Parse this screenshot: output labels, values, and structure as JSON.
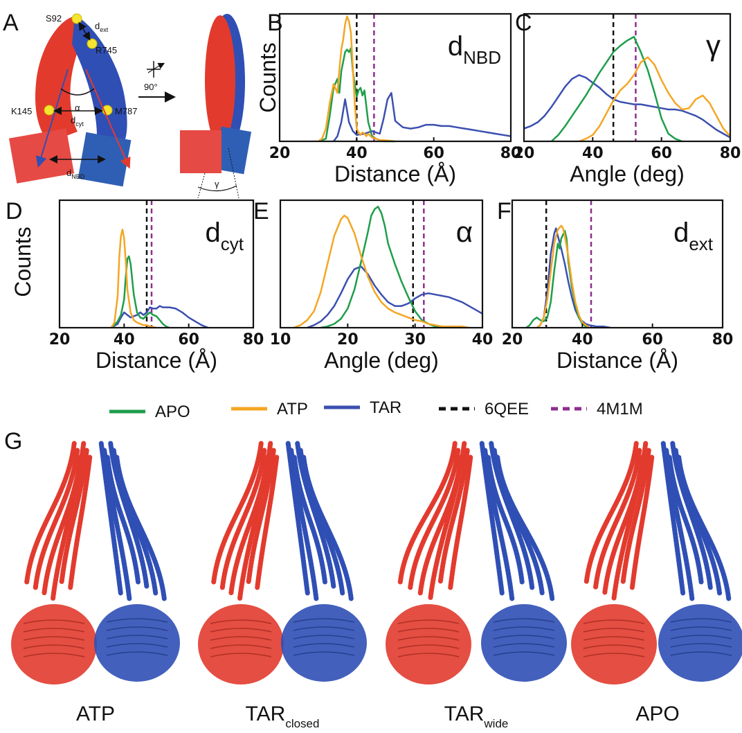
{
  "colors": {
    "APO": "#1e9e4a",
    "ATP": "#f4a623",
    "TAR": "#3b4fb0",
    "6QEE": "#111111",
    "4M1M": "#8e2d91",
    "chain_red": "#e23b2e",
    "chain_blue": "#2f4fb5"
  },
  "panel_A": {
    "letter": "A",
    "residues": [
      "S92",
      "R745",
      "K145",
      "M787"
    ],
    "d_ext_label": "d",
    "d_ext_sub": "ext",
    "alpha": "α",
    "d_cyt_label": "d",
    "d_cyt_sub": "cyt",
    "d_nbd_label": "d",
    "d_nbd_sub": "NBD",
    "rotation": "90°",
    "gamma": "γ"
  },
  "legend": {
    "items": [
      {
        "name": "APO",
        "style": "solid",
        "color": "#1e9e4a"
      },
      {
        "name": "ATP",
        "style": "solid",
        "color": "#f4a623"
      },
      {
        "name": "TAR",
        "style": "solid",
        "color": "#3b4fb0"
      },
      {
        "name": "6QEE",
        "style": "dashed",
        "color": "#111111"
      },
      {
        "name": "4M1M",
        "style": "dashed",
        "color": "#8e2d91"
      }
    ]
  },
  "chart_data": [
    {
      "panel": "B",
      "type": "line",
      "title_main": "d",
      "title_sub": "NBD",
      "xlabel": "Distance (Å)",
      "ylabel": "Counts",
      "xlim": [
        20,
        80
      ],
      "ylim": [
        0,
        1
      ],
      "xticks": [
        20,
        40,
        60,
        80
      ],
      "reference_lines": {
        "6QEE": 40,
        "4M1M": 44.5
      },
      "series": [
        {
          "name": "APO",
          "x": [
            30,
            32,
            33,
            34,
            35,
            35.5,
            36,
            37,
            37.5,
            38,
            38.5,
            39,
            40,
            40.5,
            41,
            41.5,
            42,
            43,
            44,
            45,
            46,
            47,
            50
          ],
          "y": [
            0,
            0.02,
            0.2,
            0.42,
            0.49,
            0.38,
            0.55,
            0.7,
            0.72,
            0.7,
            0.73,
            0.55,
            0.35,
            0.4,
            0.42,
            0.36,
            0.4,
            0.15,
            0.04,
            0.02,
            0.01,
            0,
            0
          ]
        },
        {
          "name": "ATP",
          "x": [
            30,
            31,
            32,
            33,
            34,
            35,
            35.5,
            36,
            36.5,
            37,
            37.5,
            38,
            38.5,
            39,
            39.5,
            40,
            40.5,
            41,
            41.5,
            42,
            42.5,
            43,
            44,
            45,
            46,
            47,
            50
          ],
          "y": [
            0,
            0.02,
            0.1,
            0.3,
            0.45,
            0.38,
            0.56,
            0.72,
            0.8,
            0.92,
            0.98,
            0.94,
            0.85,
            0.58,
            0.3,
            0.1,
            0.07,
            0.05,
            0.07,
            0.06,
            0.04,
            0.06,
            0.03,
            0.02,
            0.01,
            0.01,
            0
          ]
        },
        {
          "name": "TAR",
          "x": [
            34,
            35,
            36,
            37,
            38,
            39,
            40,
            42,
            44,
            46,
            47,
            48,
            49,
            50,
            52,
            54,
            56,
            58,
            60,
            62,
            64,
            66,
            68,
            70,
            72,
            74,
            76,
            78,
            80
          ],
          "y": [
            0,
            0.04,
            0.15,
            0.33,
            0.15,
            0.08,
            0.05,
            0.06,
            0.08,
            0.06,
            0.18,
            0.33,
            0.38,
            0.16,
            0.11,
            0.1,
            0.11,
            0.13,
            0.13,
            0.12,
            0.12,
            0.11,
            0.1,
            0.09,
            0.08,
            0.07,
            0.06,
            0.05,
            0.04
          ]
        }
      ]
    },
    {
      "panel": "C",
      "type": "line",
      "title_main": "γ",
      "title_sub": "",
      "xlabel": "Angle (deg)",
      "ylabel": "",
      "xlim": [
        20,
        80
      ],
      "ylim": [
        0,
        1
      ],
      "xticks": [
        20,
        40,
        60,
        80
      ],
      "reference_lines": {
        "6QEE": 46,
        "4M1M": 52.5
      },
      "series": [
        {
          "name": "APO",
          "x": [
            28,
            30,
            32,
            34,
            36,
            38,
            40,
            42,
            44,
            46,
            48,
            50,
            52,
            53,
            54,
            56,
            58,
            60,
            62,
            64,
            66
          ],
          "y": [
            0,
            0.05,
            0.12,
            0.2,
            0.28,
            0.36,
            0.45,
            0.54,
            0.62,
            0.7,
            0.75,
            0.79,
            0.82,
            0.76,
            0.7,
            0.56,
            0.38,
            0.18,
            0.06,
            0.02,
            0
          ]
        },
        {
          "name": "ATP",
          "x": [
            36,
            38,
            40,
            42,
            44,
            46,
            48,
            50,
            52,
            54,
            56,
            58,
            60,
            62,
            64,
            66,
            68,
            70,
            72,
            74,
            76,
            78,
            80
          ],
          "y": [
            0,
            0.02,
            0.05,
            0.12,
            0.22,
            0.32,
            0.4,
            0.45,
            0.52,
            0.62,
            0.66,
            0.6,
            0.48,
            0.38,
            0.3,
            0.25,
            0.26,
            0.33,
            0.36,
            0.3,
            0.2,
            0.1,
            0.04
          ]
        },
        {
          "name": "TAR",
          "x": [
            20,
            22,
            24,
            26,
            28,
            30,
            32,
            34,
            36,
            38,
            40,
            42,
            44,
            46,
            48,
            50,
            52,
            54,
            56,
            58,
            60,
            62,
            64,
            66,
            68,
            70,
            72,
            74,
            76,
            78,
            80
          ],
          "y": [
            0.1,
            0.12,
            0.15,
            0.2,
            0.27,
            0.35,
            0.43,
            0.49,
            0.52,
            0.5,
            0.46,
            0.42,
            0.37,
            0.33,
            0.31,
            0.3,
            0.29,
            0.29,
            0.28,
            0.27,
            0.26,
            0.25,
            0.25,
            0.24,
            0.22,
            0.2,
            0.17,
            0.13,
            0.09,
            0.06,
            0.03
          ]
        }
      ]
    },
    {
      "panel": "D",
      "type": "line",
      "title_main": "d",
      "title_sub": "cyt",
      "xlabel": "Distance (Å)",
      "ylabel": "Counts",
      "xlim": [
        20,
        80
      ],
      "ylim": [
        0,
        1
      ],
      "xticks": [
        20,
        40,
        60,
        80
      ],
      "reference_lines": {
        "6QEE": 47,
        "4M1M": 48.5
      },
      "series": [
        {
          "name": "APO",
          "x": [
            36,
            37,
            38,
            39,
            40,
            40.5,
            41,
            41.5,
            42,
            43,
            44,
            45,
            46,
            47,
            48,
            49,
            50,
            51,
            52,
            53,
            54
          ],
          "y": [
            0,
            0.02,
            0.05,
            0.1,
            0.22,
            0.4,
            0.54,
            0.56,
            0.5,
            0.26,
            0.12,
            0.08,
            0.07,
            0.1,
            0.12,
            0.1,
            0.09,
            0.06,
            0.03,
            0.01,
            0
          ]
        },
        {
          "name": "ATP",
          "x": [
            36,
            37,
            38,
            38.5,
            39,
            39.5,
            40,
            40.5,
            41,
            42,
            43,
            44,
            45,
            46,
            47,
            48,
            50
          ],
          "y": [
            0,
            0.04,
            0.25,
            0.55,
            0.72,
            0.77,
            0.7,
            0.52,
            0.3,
            0.12,
            0.06,
            0.04,
            0.03,
            0.02,
            0.02,
            0.01,
            0
          ]
        },
        {
          "name": "TAR",
          "x": [
            36,
            38,
            39,
            40,
            41,
            42,
            43,
            44,
            45,
            46,
            47,
            48,
            49,
            50,
            51,
            52,
            54,
            56,
            58,
            60,
            62,
            64,
            66
          ],
          "y": [
            0,
            0.03,
            0.08,
            0.12,
            0.1,
            0.08,
            0.09,
            0.1,
            0.12,
            0.1,
            0.12,
            0.16,
            0.15,
            0.15,
            0.17,
            0.16,
            0.16,
            0.15,
            0.12,
            0.08,
            0.05,
            0.02,
            0
          ]
        }
      ]
    },
    {
      "panel": "E",
      "type": "line",
      "title_main": "α",
      "title_sub": "",
      "xlabel": "Angle (deg)",
      "ylabel": "",
      "xlim": [
        10,
        40
      ],
      "ylim": [
        0,
        1
      ],
      "xticks": [
        10,
        20,
        30,
        40
      ],
      "reference_lines": {
        "6QEE": 29.7,
        "4M1M": 31.3
      },
      "series": [
        {
          "name": "APO",
          "x": [
            16,
            17,
            18,
            19,
            20,
            21,
            22,
            23,
            23.5,
            24,
            24.5,
            25,
            25.5,
            26,
            27,
            28,
            29,
            30,
            31,
            32,
            33,
            34,
            35
          ],
          "y": [
            0,
            0.01,
            0.03,
            0.07,
            0.15,
            0.3,
            0.52,
            0.75,
            0.88,
            0.93,
            0.95,
            0.9,
            0.8,
            0.66,
            0.5,
            0.36,
            0.24,
            0.13,
            0.06,
            0.03,
            0.01,
            0.01,
            0
          ]
        },
        {
          "name": "ATP",
          "x": [
            12,
            13,
            14,
            15,
            16,
            17,
            18,
            19,
            19.5,
            20,
            21,
            22,
            23,
            24,
            25,
            26,
            27,
            28,
            29,
            30,
            31,
            32,
            33,
            34,
            35,
            36,
            37,
            38
          ],
          "y": [
            0,
            0.02,
            0.06,
            0.13,
            0.28,
            0.5,
            0.72,
            0.85,
            0.88,
            0.86,
            0.74,
            0.56,
            0.4,
            0.28,
            0.2,
            0.15,
            0.12,
            0.1,
            0.08,
            0.06,
            0.05,
            0.03,
            0.02,
            0.01,
            0.01,
            0.01,
            0.01,
            0
          ]
        },
        {
          "name": "TAR",
          "x": [
            14,
            15,
            16,
            17,
            18,
            19,
            20,
            21,
            22,
            23,
            24,
            25,
            26,
            27,
            28,
            29,
            30,
            31,
            32,
            33,
            34,
            35,
            36,
            37,
            38,
            39,
            40
          ],
          "y": [
            0,
            0.02,
            0.05,
            0.1,
            0.17,
            0.27,
            0.38,
            0.46,
            0.48,
            0.42,
            0.33,
            0.26,
            0.2,
            0.17,
            0.17,
            0.19,
            0.23,
            0.26,
            0.27,
            0.26,
            0.25,
            0.24,
            0.22,
            0.2,
            0.17,
            0.14,
            0.11
          ]
        }
      ]
    },
    {
      "panel": "F",
      "type": "line",
      "title_main": "d",
      "title_sub": "ext",
      "xlabel": "Distance (Å)",
      "ylabel": "",
      "xlim": [
        20,
        80
      ],
      "ylim": [
        0,
        1
      ],
      "xticks": [
        20,
        40,
        60,
        80
      ],
      "reference_lines": {
        "6QEE": 29.7,
        "4M1M": 42.5
      },
      "series": [
        {
          "name": "APO",
          "x": [
            24,
            25,
            26,
            27,
            28,
            29,
            30,
            31,
            32,
            33,
            33.5,
            34,
            35,
            35.5,
            36,
            37,
            38,
            39,
            40,
            41,
            42
          ],
          "y": [
            0,
            0.02,
            0.06,
            0.08,
            0.06,
            0.05,
            0.08,
            0.2,
            0.45,
            0.66,
            0.62,
            0.7,
            0.76,
            0.7,
            0.52,
            0.32,
            0.18,
            0.08,
            0.03,
            0.01,
            0
          ]
        },
        {
          "name": "ATP",
          "x": [
            27,
            28,
            29,
            30,
            31,
            32,
            33,
            34,
            34.5,
            35,
            36,
            37,
            38,
            39,
            40,
            41,
            42
          ],
          "y": [
            0,
            0.02,
            0.08,
            0.22,
            0.44,
            0.66,
            0.77,
            0.8,
            0.78,
            0.72,
            0.56,
            0.36,
            0.2,
            0.1,
            0.04,
            0.02,
            0
          ]
        },
        {
          "name": "TAR",
          "x": [
            27,
            28,
            29,
            30,
            31,
            32,
            32.5,
            33,
            34,
            35,
            36,
            37,
            38,
            39,
            40,
            41,
            42,
            44,
            46,
            48
          ],
          "y": [
            0,
            0.02,
            0.08,
            0.28,
            0.58,
            0.74,
            0.78,
            0.72,
            0.62,
            0.5,
            0.36,
            0.24,
            0.14,
            0.08,
            0.05,
            0.03,
            0.02,
            0.01,
            0.01,
            0
          ]
        }
      ]
    }
  ],
  "panel_G": {
    "letter": "G",
    "structures": [
      {
        "name": "ATP",
        "sub": ""
      },
      {
        "name": "TAR",
        "sub": "closed"
      },
      {
        "name": "TAR",
        "sub": "wide"
      },
      {
        "name": "APO",
        "sub": ""
      }
    ]
  }
}
